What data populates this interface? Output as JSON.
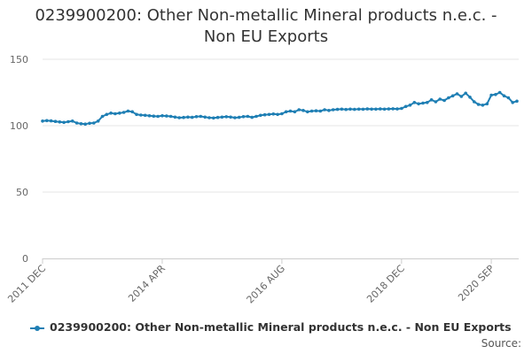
{
  "chart_data": {
    "type": "line",
    "title_lines": [
      "0239900200: Other Non-metallic Mineral products n.e.c. -",
      "Non EU Exports"
    ],
    "xlabel": "",
    "ylabel": "",
    "ylim": [
      0,
      150
    ],
    "yticks": [
      0,
      50,
      100,
      150
    ],
    "x_tick_labels": [
      {
        "label": "2011 DEC",
        "index": 0
      },
      {
        "label": "2014 APR",
        "index": 28
      },
      {
        "label": "2016 AUG",
        "index": 56
      },
      {
        "label": "2018 DEC",
        "index": 84
      },
      {
        "label": "2020 SEP",
        "index": 105
      }
    ],
    "grid": true,
    "legend_position": "bottom",
    "series": [
      {
        "name": "0239900200: Other Non-metallic Mineral products n.e.c. - Non EU Exports",
        "color": "#1f7fb4",
        "values": [
          103.5,
          103.8,
          103.6,
          103.2,
          102.8,
          102.5,
          103.0,
          103.5,
          102.0,
          101.5,
          101.2,
          101.8,
          102.0,
          103.5,
          107.0,
          108.5,
          109.5,
          109.0,
          109.5,
          110.0,
          111.0,
          110.5,
          108.5,
          108.0,
          107.8,
          107.5,
          107.2,
          107.0,
          107.5,
          107.3,
          107.0,
          106.5,
          106.0,
          106.2,
          106.5,
          106.3,
          106.8,
          107.0,
          106.5,
          106.0,
          105.8,
          106.2,
          106.5,
          106.7,
          106.5,
          106.0,
          106.3,
          106.8,
          107.0,
          106.3,
          107.0,
          107.8,
          108.2,
          108.5,
          108.8,
          108.5,
          109.0,
          110.5,
          111.0,
          110.5,
          112.0,
          111.5,
          110.5,
          111.0,
          111.2,
          111.0,
          112.0,
          111.5,
          112.0,
          112.3,
          112.5,
          112.2,
          112.5,
          112.3,
          112.5,
          112.4,
          112.6,
          112.5,
          112.5,
          112.6,
          112.5,
          112.6,
          112.7,
          112.6,
          113.0,
          114.5,
          115.5,
          117.5,
          116.5,
          117.0,
          117.5,
          119.5,
          118.0,
          120.0,
          119.0,
          121.0,
          122.5,
          124.0,
          122.0,
          124.5,
          121.5,
          118.0,
          116.0,
          115.5,
          116.5,
          123.0,
          123.5,
          125.0,
          122.5,
          121.0,
          117.5,
          118.5
        ]
      }
    ],
    "source_label": "Source:"
  }
}
